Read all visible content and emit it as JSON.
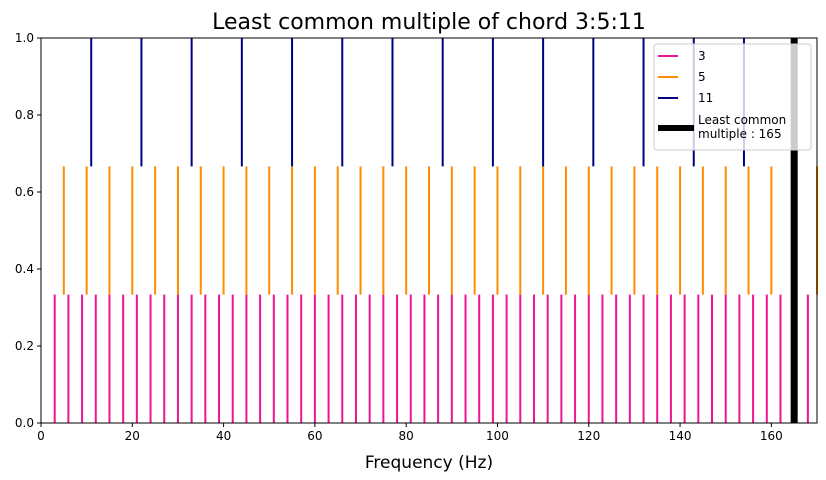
{
  "chart_data": {
    "type": "vlines",
    "title": "Least common multiple of chord 3:5:11",
    "xlabel": "Frequency (Hz)",
    "ylabel": "",
    "xlim": [
      0,
      170
    ],
    "ylim": [
      0,
      1
    ],
    "xticks": [
      0,
      20,
      40,
      60,
      80,
      100,
      120,
      140,
      160
    ],
    "xtick_labels": [
      "0",
      "20",
      "40",
      "60",
      "80",
      "100",
      "120",
      "140",
      "160"
    ],
    "yticks": [
      0,
      0.2,
      0.4,
      0.6,
      0.8,
      1.0
    ],
    "ytick_labels": [
      "0.0",
      "0.2",
      "0.4",
      "0.6",
      "0.8",
      "1.0"
    ],
    "grid": false,
    "legend_position": "top-right",
    "series": [
      {
        "name": "3",
        "color": "#ee1493",
        "ymin": 0,
        "ymax": 0.3333,
        "x": [
          3,
          6,
          9,
          12,
          15,
          18,
          21,
          24,
          27,
          30,
          33,
          36,
          39,
          42,
          45,
          48,
          51,
          54,
          57,
          60,
          63,
          66,
          69,
          72,
          75,
          78,
          81,
          84,
          87,
          90,
          93,
          96,
          99,
          102,
          105,
          108,
          111,
          114,
          117,
          120,
          123,
          126,
          129,
          132,
          135,
          138,
          141,
          144,
          147,
          150,
          153,
          156,
          159,
          162,
          165,
          168
        ]
      },
      {
        "name": "5",
        "color": "#ff8c00",
        "ymin": 0.3333,
        "ymax": 0.6667,
        "x": [
          5,
          10,
          15,
          20,
          25,
          30,
          35,
          40,
          45,
          50,
          55,
          60,
          65,
          70,
          75,
          80,
          85,
          90,
          95,
          100,
          105,
          110,
          115,
          120,
          125,
          130,
          135,
          140,
          145,
          150,
          155,
          160,
          165,
          170
        ]
      },
      {
        "name": "11",
        "color": "#000080",
        "ymin": 0.6667,
        "ymax": 1.0,
        "x": [
          11,
          22,
          33,
          44,
          55,
          66,
          77,
          88,
          99,
          110,
          121,
          132,
          143,
          154,
          165
        ]
      }
    ],
    "lcm_line": {
      "name": "Least common\nmultiple : 165",
      "label_lines": [
        "Least common",
        "multiple : 165"
      ],
      "x": 165,
      "color": "#000000"
    }
  }
}
